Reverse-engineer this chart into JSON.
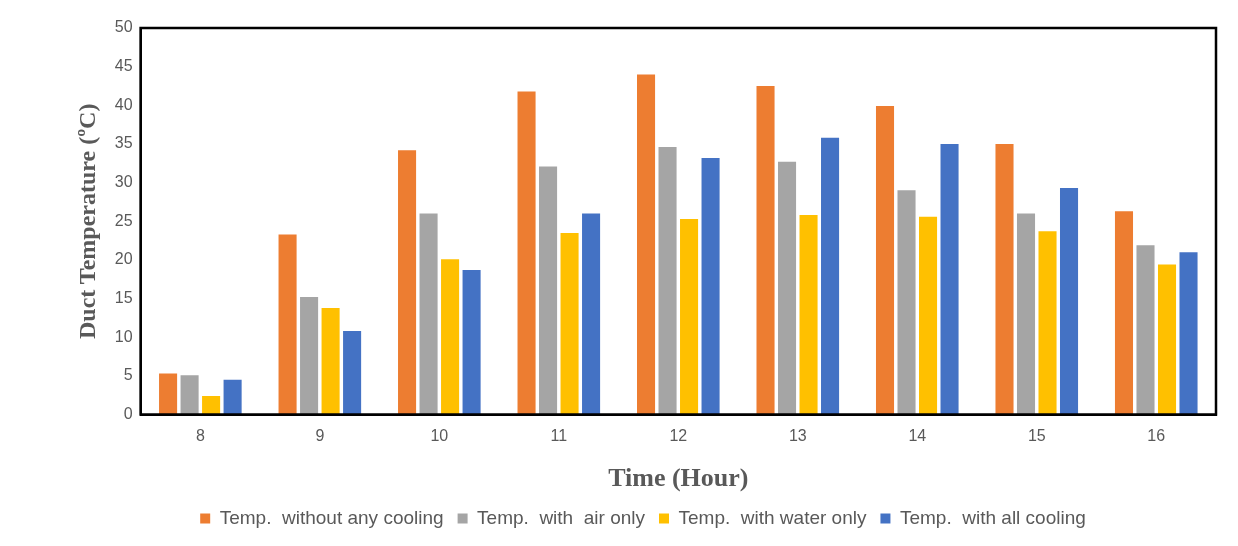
{
  "chart_data": {
    "type": "bar",
    "xlabel": "Time (Hour)",
    "ylabel": "Duct Temperature (ºC)",
    "categories": [
      "8",
      "9",
      "10",
      "11",
      "12",
      "13",
      "14",
      "15",
      "16"
    ],
    "series": [
      {
        "name": "Temp.  without any cooling",
        "color": "#ed7d31",
        "values": [
          5.3,
          23.3,
          34.2,
          41.8,
          44,
          42.5,
          39.9,
          35,
          26.3
        ]
      },
      {
        "name": "Temp.  with  air only",
        "color": "#a5a5a5",
        "values": [
          5.1,
          15.2,
          26,
          32.1,
          34.6,
          32.7,
          29,
          26,
          21.9
        ]
      },
      {
        "name": "Temp.  with water only",
        "color": "#ffc000",
        "values": [
          2.4,
          13.8,
          20.1,
          23.5,
          25.3,
          25.8,
          25.6,
          23.7,
          19.4
        ]
      },
      {
        "name": "Temp.  with all cooling",
        "color": "#4472c4",
        "values": [
          4.5,
          10.8,
          18.7,
          26,
          33.2,
          35.8,
          35,
          29.3,
          21
        ]
      }
    ],
    "ylim": [
      0,
      50
    ],
    "yticks": [
      0,
      5,
      10,
      15,
      20,
      25,
      30,
      35,
      40,
      45,
      50
    ],
    "grid": false,
    "legend": "bottom"
  }
}
